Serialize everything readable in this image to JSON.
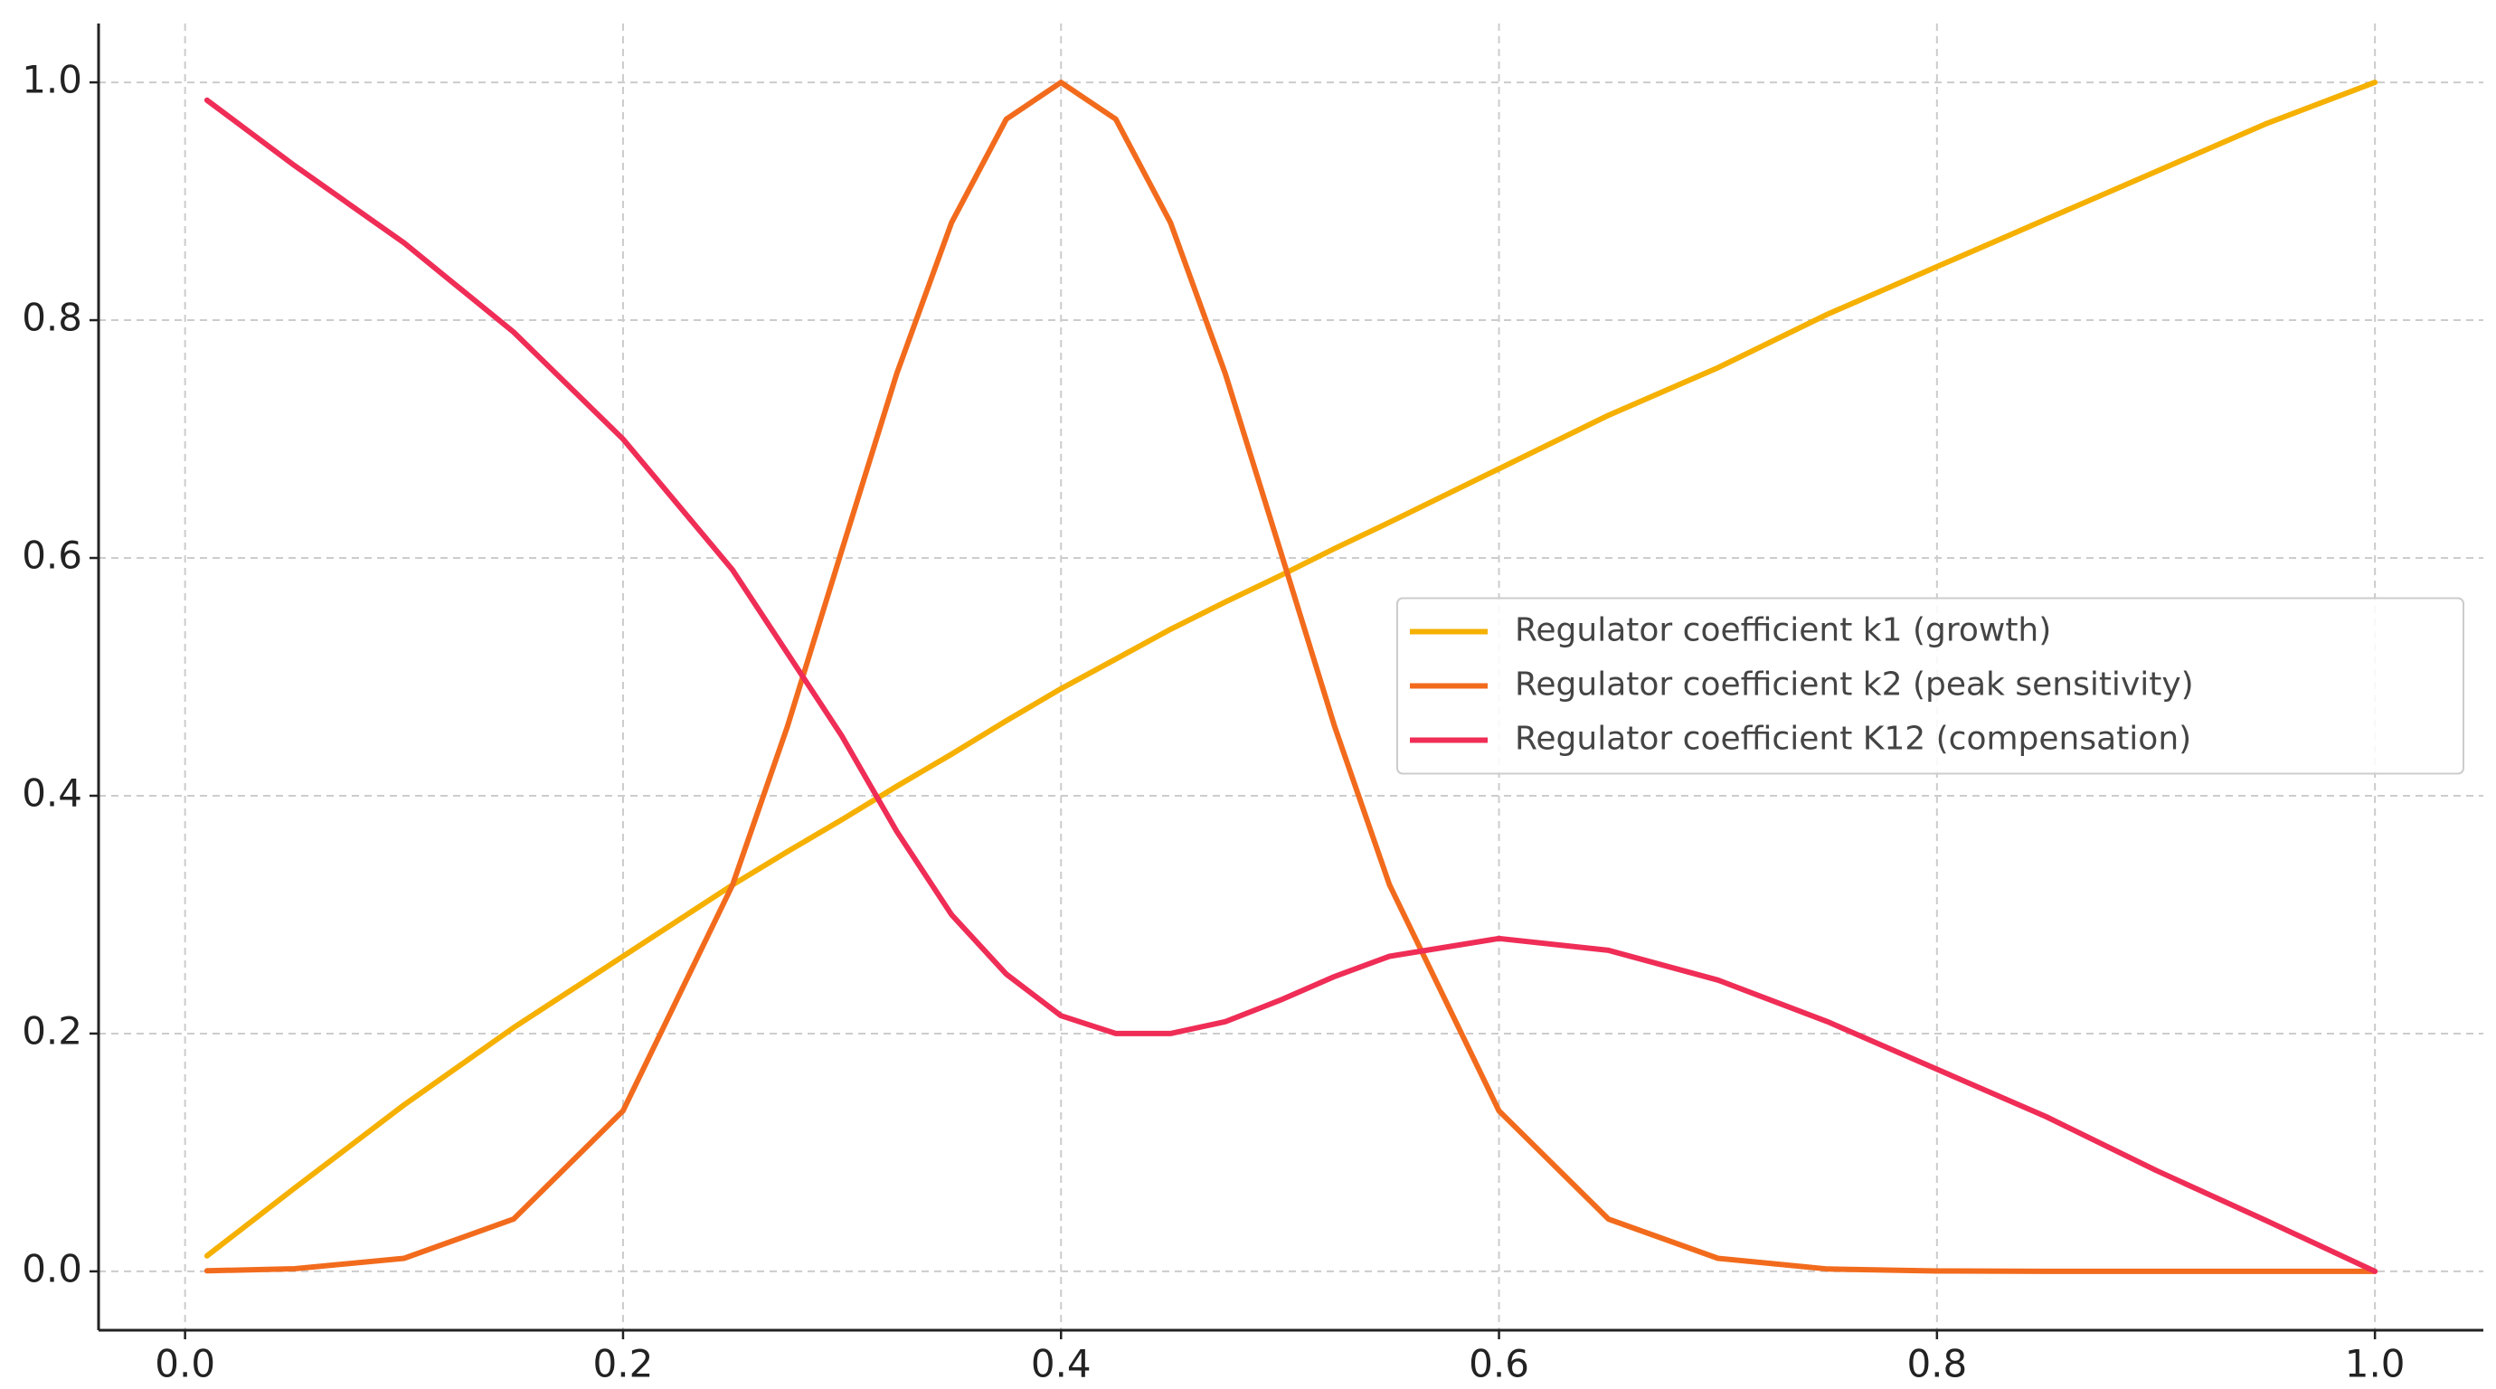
{
  "chart_data": {
    "type": "line",
    "x": [
      0.01,
      0.05,
      0.1,
      0.15,
      0.2,
      0.25,
      0.275,
      0.3,
      0.325,
      0.35,
      0.375,
      0.4,
      0.425,
      0.45,
      0.475,
      0.5,
      0.525,
      0.55,
      0.6,
      0.65,
      0.7,
      0.75,
      0.8,
      0.85,
      0.9,
      0.95,
      1.0
    ],
    "series": [
      {
        "name": "Regulator coefficient k1 (growth)",
        "color": "#f5b000",
        "values": [
          0.013,
          0.07,
          0.14,
          0.205,
          0.265,
          0.325,
          0.353,
          0.38,
          0.408,
          0.435,
          0.463,
          0.49,
          0.515,
          0.54,
          0.563,
          0.585,
          0.608,
          0.63,
          0.675,
          0.72,
          0.76,
          0.805,
          0.845,
          0.885,
          0.925,
          0.965,
          1.0
        ]
      },
      {
        "name": "Regulator coefficient k2 (peak sensitivity)",
        "color": "#f26b1d",
        "values": [
          0.0005,
          0.0022,
          0.011,
          0.044,
          0.135,
          0.325,
          0.458,
          0.607,
          0.755,
          0.882,
          0.969,
          1.0,
          0.969,
          0.882,
          0.755,
          0.607,
          0.458,
          0.325,
          0.135,
          0.044,
          0.011,
          0.002,
          0.0003,
          0,
          0,
          0,
          0
        ]
      },
      {
        "name": "Regulator coefficient K12 (compensation)",
        "color": "#ef2d56",
        "values": [
          0.985,
          0.93,
          0.865,
          0.79,
          0.7,
          0.59,
          0.52,
          0.45,
          0.37,
          0.3,
          0.25,
          0.215,
          0.2,
          0.2,
          0.21,
          0.228,
          0.248,
          0.265,
          0.28,
          0.27,
          0.245,
          0.21,
          0.17,
          0.13,
          0.085,
          0.043,
          0.0
        ]
      }
    ],
    "xlim": [
      -0.0395,
      1.0495
    ],
    "ylim": [
      -0.0495,
      1.0495
    ],
    "xticks": [
      {
        "value": 0,
        "label": "0.0"
      },
      0.2,
      0.4,
      0.6,
      0.8,
      {
        "value": 1,
        "label": "1.0"
      }
    ],
    "yticks": [
      {
        "value": 0,
        "label": "0.0"
      },
      0.2,
      0.4,
      0.6,
      0.8,
      {
        "value": 1,
        "label": "1.0"
      }
    ],
    "grid": true,
    "legend": "center right"
  }
}
